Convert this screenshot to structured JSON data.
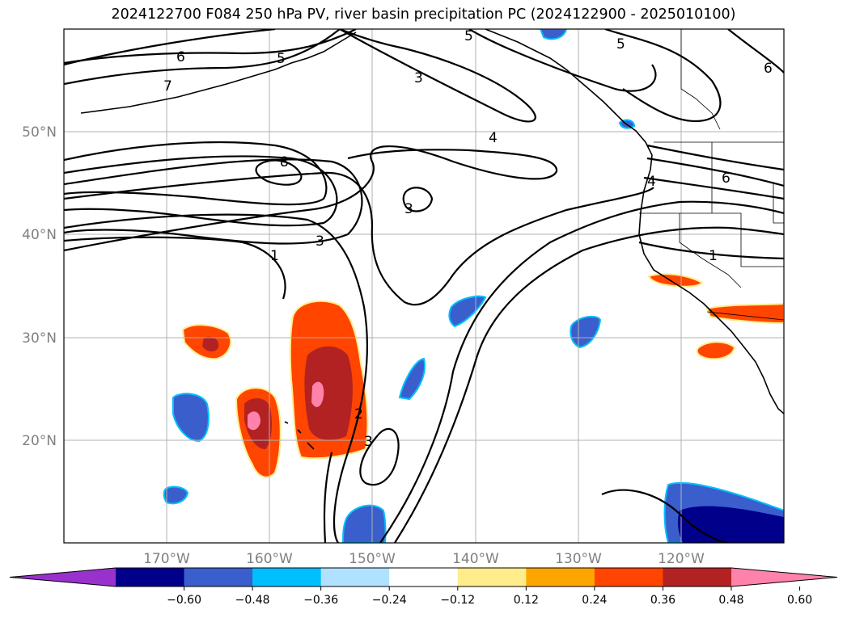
{
  "title": "2024122700 F084 250 hPa PV, river basin precipitation PC (2024122900 - 2025010100)",
  "map": {
    "lon_range": [
      -180,
      -110
    ],
    "lat_range": [
      10,
      60
    ],
    "lat_labels": [
      "50°N",
      "40°N",
      "30°N",
      "20°N"
    ],
    "lon_labels": [
      "170°W",
      "160°W",
      "150°W",
      "140°W",
      "130°W",
      "120°W"
    ],
    "gridlines": true,
    "background": "#ffffff"
  },
  "pv_contour_labels": [
    "6",
    "5",
    "7",
    "5",
    "3",
    "5",
    "6",
    "8",
    "4",
    "3",
    "4",
    "6",
    "3",
    "1",
    "1",
    "2",
    "3"
  ],
  "colorbar": {
    "extend": "both",
    "ticks": [
      "−0.60",
      "−0.48",
      "−0.36",
      "−0.24",
      "−0.12",
      "0.12",
      "0.24",
      "0.36",
      "0.48",
      "0.60"
    ],
    "colors": [
      "#9932cc",
      "#00008b",
      "#3a5fcd",
      "#00bfff",
      "#b0e2ff",
      "#ffffff",
      "#ffec8b",
      "#ffa500",
      "#ff4500",
      "#b22222",
      "#ff82ab"
    ]
  }
}
